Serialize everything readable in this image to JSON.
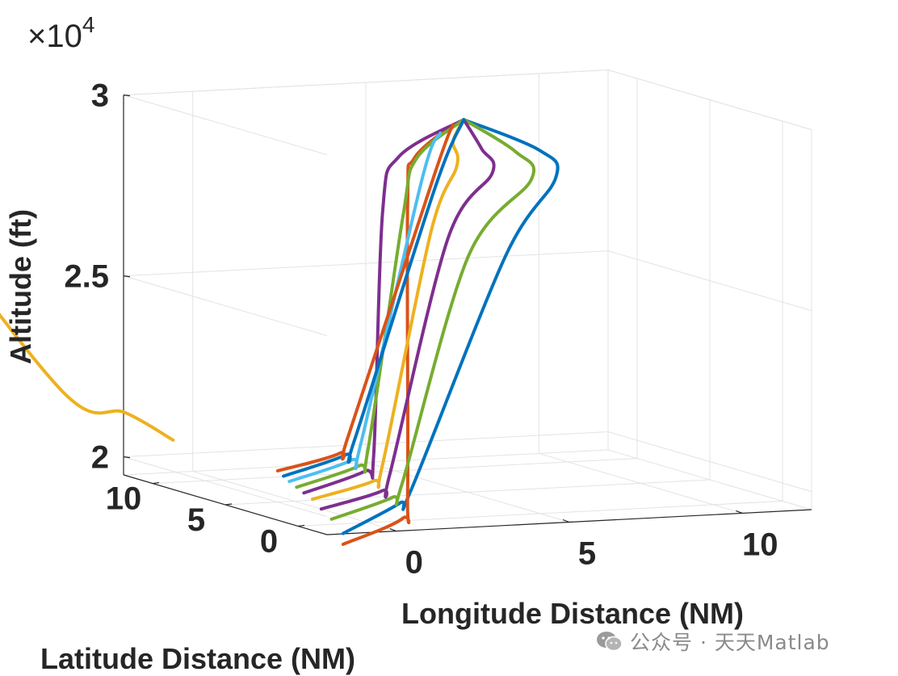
{
  "chart_data": {
    "type": "line3d",
    "xlabel": "Longitude Distance (NM)",
    "ylabel": "Latitude Distance (NM)",
    "zlabel": "Altitude (ft)",
    "xlim": [
      -2,
      12
    ],
    "ylim": [
      -2,
      12
    ],
    "zlim": [
      19500,
      30000
    ],
    "x_ticks": [
      {
        "value": 0,
        "label": "0"
      },
      {
        "value": 5,
        "label": "5"
      },
      {
        "value": 10,
        "label": "10"
      }
    ],
    "y_ticks": [
      {
        "value": 0,
        "label": "0"
      },
      {
        "value": 5,
        "label": "5"
      },
      {
        "value": 10,
        "label": "10"
      }
    ],
    "z_ticks": [
      {
        "value": 20000,
        "label": "2"
      },
      {
        "value": 25000,
        "label": "2.5"
      },
      {
        "value": 30000,
        "label": "3"
      }
    ],
    "z_exponent": {
      "base": "×10",
      "power": "4"
    },
    "grid": true,
    "series": [
      {
        "color": "#0072BD",
        "points": [
          [
            -1.2,
            -1.2,
            19400
          ],
          [
            0.6,
            -0.8,
            20100
          ],
          [
            1.2,
            -0.2,
            20400
          ],
          [
            4.5,
            1.2,
            26500
          ],
          [
            6.2,
            1.8,
            28500
          ],
          [
            6.0,
            2.4,
            29200
          ],
          [
            4.3,
            3.6,
            30000
          ]
        ]
      },
      {
        "color": "#D95319",
        "points": [
          [
            -1.2,
            -1.2,
            19100
          ],
          [
            0.6,
            -1.0,
            19700
          ],
          [
            1.0,
            -0.4,
            20300
          ],
          [
            1.0,
            -0.4,
            28300
          ],
          [
            1.6,
            0.6,
            29400
          ],
          [
            3.9,
            3.4,
            29900
          ]
        ]
      },
      {
        "color": "#77AC30",
        "points": [
          [
            -1.2,
            -0.4,
            19700
          ],
          [
            0.6,
            -0.3,
            20200
          ],
          [
            1.0,
            0.0,
            20500
          ],
          [
            3.5,
            1.4,
            26500
          ],
          [
            5.5,
            1.8,
            28500
          ],
          [
            5.3,
            2.4,
            29200
          ],
          [
            4.3,
            3.6,
            30000
          ]
        ]
      },
      {
        "color": "#7E2F8E",
        "points": [
          [
            -1.2,
            0.3,
            19900
          ],
          [
            0.6,
            0.4,
            20300
          ],
          [
            0.9,
            0.6,
            20700
          ],
          [
            3.0,
            1.6,
            27000
          ],
          [
            4.5,
            2.1,
            28700
          ],
          [
            4.4,
            2.6,
            29300
          ],
          [
            4.3,
            3.6,
            30000
          ]
        ]
      },
      {
        "color": "#EDB120",
        "points": [
          [
            -1.2,
            0.9,
            20100
          ],
          [
            0.6,
            1.0,
            20500
          ],
          [
            0.9,
            1.1,
            20900
          ],
          [
            2.6,
            1.8,
            27200
          ],
          [
            3.6,
            2.4,
            28900
          ],
          [
            3.7,
            2.9,
            29500
          ],
          [
            4.3,
            3.6,
            30000
          ]
        ]
      },
      {
        "color": "#7E2F8E",
        "points": [
          [
            -1.2,
            1.5,
            20200
          ],
          [
            0.6,
            1.6,
            20700
          ],
          [
            0.9,
            1.7,
            21100
          ],
          [
            1.2,
            1.8,
            27800
          ],
          [
            2.0,
            2.6,
            29200
          ],
          [
            4.3,
            3.6,
            30000
          ]
        ]
      },
      {
        "color": "#77AC30",
        "points": [
          [
            -1.2,
            2.0,
            20300
          ],
          [
            0.6,
            2.0,
            20800
          ],
          [
            0.9,
            2.1,
            21200
          ],
          [
            2.0,
            2.3,
            27600
          ],
          [
            2.6,
            2.8,
            29100
          ],
          [
            4.3,
            3.6,
            30000
          ]
        ]
      },
      {
        "color": "#4DBEEE",
        "points": [
          [
            -1.2,
            2.5,
            20400
          ],
          [
            0.6,
            2.5,
            20900
          ],
          [
            0.9,
            2.6,
            21300
          ],
          [
            2.8,
            2.9,
            28500
          ],
          [
            3.5,
            3.3,
            29700
          ]
        ]
      },
      {
        "color": "#0072BD",
        "points": [
          [
            -1.2,
            2.9,
            20500
          ],
          [
            0.6,
            2.9,
            21000
          ],
          [
            0.9,
            3.0,
            21400
          ],
          [
            3.3,
            3.2,
            28200
          ],
          [
            4.3,
            3.6,
            30000
          ]
        ]
      },
      {
        "color": "#D95319",
        "points": [
          [
            -1.2,
            3.3,
            20600
          ],
          [
            0.6,
            3.3,
            21000
          ],
          [
            0.9,
            3.4,
            21500
          ],
          [
            3.4,
            3.5,
            28500
          ],
          [
            3.9,
            3.4,
            29900
          ]
        ]
      },
      {
        "color": "#EDB120",
        "points": [
          [
            -1.2,
            10.5,
            20600
          ],
          [
            -2.2,
            11.4,
            21300
          ],
          [
            -3.8,
            11.9,
            21900
          ],
          [
            -8.1,
            12.2,
            27600
          ],
          [
            -8.0,
            13.2,
            28500
          ],
          [
            -5.2,
            14.6,
            29400
          ]
        ]
      }
    ]
  },
  "watermark": {
    "text": "公众号 · 天天Matlab",
    "icon": "wechat-icon"
  }
}
